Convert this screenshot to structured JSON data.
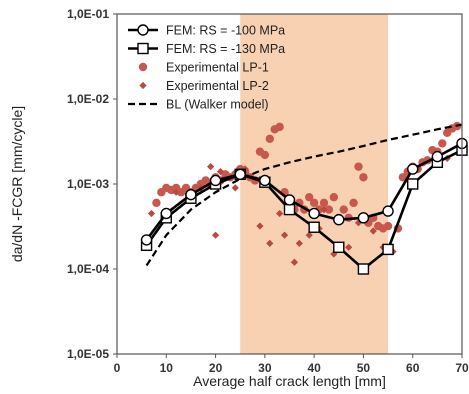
{
  "chart_data": {
    "type": "scatter",
    "xlabel": "Average half crack length [mm]",
    "ylabel": "da/dN -FCGR [mm/cycle]",
    "xlim": [
      0,
      70
    ],
    "ylim": [
      1e-05,
      0.1
    ],
    "yscale": "log",
    "xticks": [
      "0",
      "10",
      "20",
      "30",
      "40",
      "50",
      "60",
      "70"
    ],
    "yticks": [
      "1,0E-05",
      "1,0E-04",
      "1,0E-03",
      "1,0E-02",
      "1,0E-01"
    ],
    "grid": false,
    "legend_position": "top-left",
    "shaded_region": {
      "x": [
        25,
        55
      ],
      "color": "#f7c9a6"
    },
    "series": [
      {
        "name": "FEM: RS = -100 MPa",
        "style": "line-circle",
        "color": "#000000",
        "x": [
          6,
          10,
          15,
          20,
          25,
          30,
          35,
          40,
          45,
          50,
          55,
          60,
          65,
          70
        ],
        "y": [
          0.00022,
          0.00045,
          0.00075,
          0.0011,
          0.0013,
          0.0011,
          0.00065,
          0.00045,
          0.00038,
          0.0004,
          0.00048,
          0.0015,
          0.0021,
          0.003
        ]
      },
      {
        "name": "FEM: RS = -130 MPa",
        "style": "line-square",
        "color": "#000000",
        "x": [
          6,
          10,
          15,
          20,
          25,
          30,
          35,
          40,
          45,
          50,
          55,
          60,
          65,
          70
        ],
        "y": [
          0.00019,
          0.0004,
          0.00068,
          0.001,
          0.0013,
          0.00105,
          0.0005,
          0.00031,
          0.00018,
          0.0001,
          0.00017,
          0.001,
          0.0018,
          0.0025
        ]
      },
      {
        "name": "Experimental LP-1",
        "style": "circle",
        "color": "#c8584e",
        "x": [
          8,
          9,
          10,
          11,
          12,
          13,
          14,
          15,
          16,
          17,
          18,
          19,
          20,
          21,
          22,
          23,
          24,
          25,
          26,
          27,
          28,
          29,
          30,
          31,
          32,
          33,
          34,
          35,
          36,
          37,
          38,
          39,
          40,
          41,
          42,
          43,
          44,
          45,
          46,
          47,
          48,
          49,
          50,
          51,
          52,
          53,
          54,
          55,
          57,
          58,
          59,
          60,
          61,
          62,
          63,
          64,
          65,
          66,
          67,
          68,
          69
        ],
        "y": [
          0.0006,
          0.0008,
          0.0009,
          0.00085,
          0.0009,
          0.0008,
          0.0009,
          0.0008,
          0.0009,
          0.001,
          0.0011,
          0.001,
          0.0012,
          0.0011,
          0.0013,
          0.0012,
          0.0013,
          0.0015,
          0.0014,
          0.0012,
          0.0011,
          0.0024,
          0.0022,
          0.0034,
          0.0044,
          0.0047,
          0.0008,
          0.0006,
          0.0005,
          0.0006,
          0.0005,
          0.0007,
          0.0006,
          0.0005,
          0.0006,
          0.0005,
          0.0007,
          0.0004,
          0.0005,
          0.0004,
          0.0006,
          0.0016,
          0.0012,
          0.00035,
          0.0004,
          0.00032,
          0.0003,
          0.00032,
          0.0003,
          0.0012,
          0.0014,
          0.0016,
          0.0015,
          0.0018,
          0.0019,
          0.0025,
          0.0024,
          0.003,
          0.004,
          0.0045,
          0.0048
        ]
      },
      {
        "name": "Experimental LP-2",
        "style": "diamond",
        "color": "#b84a40",
        "x": [
          7,
          12,
          17,
          19,
          20,
          21,
          24,
          26,
          29,
          31,
          33,
          34,
          36,
          37,
          39,
          41,
          42,
          44,
          47,
          49,
          52,
          54,
          56,
          61,
          67
        ],
        "y": [
          0.00045,
          0.0008,
          0.0009,
          0.0016,
          0.00025,
          0.0014,
          0.0009,
          0.0015,
          0.00032,
          0.0002,
          0.00045,
          0.00025,
          0.00012,
          0.0002,
          0.00025,
          0.0003,
          0.0005,
          0.00015,
          0.00018,
          0.00035,
          0.00028,
          0.00018,
          0.00016,
          0.0015,
          0.002
        ]
      },
      {
        "name": "BL (Walker model)",
        "style": "dashed",
        "color": "#000000",
        "x": [
          6,
          10,
          15,
          20,
          25,
          30,
          35,
          40,
          45,
          50,
          55,
          60,
          65,
          70
        ],
        "y": [
          0.00011,
          0.00025,
          0.0005,
          0.0008,
          0.00115,
          0.0015,
          0.0018,
          0.0021,
          0.0024,
          0.0028,
          0.0033,
          0.0038,
          0.0044,
          0.005
        ]
      }
    ]
  }
}
